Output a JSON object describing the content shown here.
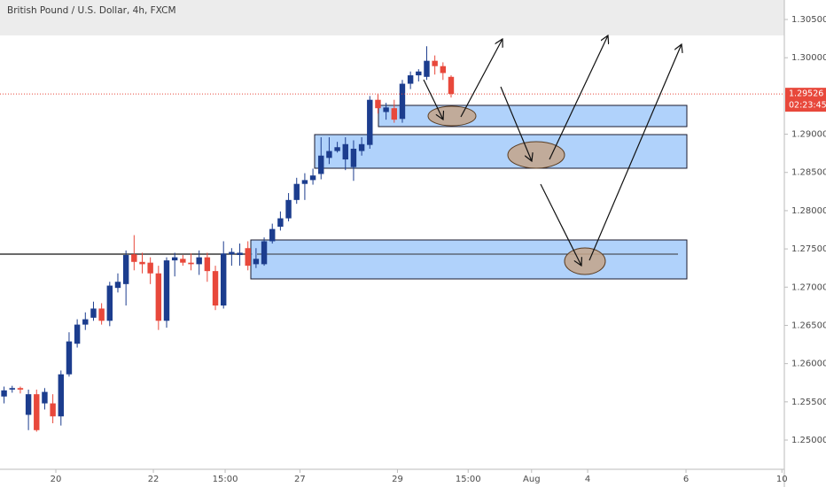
{
  "chart_data": {
    "type": "candlestick",
    "title": "British Pound / U.S. Dollar, 4h, FXCM",
    "up_color": "#1c3d8e",
    "down_color": "#e8483b",
    "series": [
      {
        "open": [
          1.2557,
          1.2566,
          1.2568,
          1.2533,
          1.256,
          1.2548,
          1.2548,
          1.2531,
          1.2586,
          1.2626,
          1.2651,
          1.266,
          1.2672,
          1.2656,
          1.2699,
          1.2704,
          1.2743,
          1.2733,
          1.2732,
          1.2718,
          1.2656,
          1.2735,
          1.2737,
          1.2732,
          1.273,
          1.2739,
          1.2721,
          1.2676,
          1.2743,
          1.2742,
          1.2751,
          1.273,
          1.273,
          1.276,
          1.2779,
          1.279,
          1.2814,
          1.2835,
          1.284,
          1.2848,
          1.2869,
          1.2878,
          1.2867,
          1.2857,
          1.2878,
          1.2886,
          1.2945,
          1.2929,
          1.2934,
          1.292,
          1.2966,
          1.2977,
          1.2975,
          1.2996,
          1.2989,
          1.2975
        ],
        "high": [
          1.257,
          1.2571,
          1.257,
          1.2566,
          1.2566,
          1.2568,
          1.256,
          1.2591,
          1.2641,
          1.2658,
          1.2667,
          1.2681,
          1.2679,
          1.2707,
          1.2718,
          1.2748,
          1.2768,
          1.2745,
          1.2739,
          1.2728,
          1.2739,
          1.2745,
          1.2742,
          1.2744,
          1.2748,
          1.2745,
          1.2728,
          1.276,
          1.2751,
          1.2757,
          1.276,
          1.2751,
          1.2765,
          1.2783,
          1.2799,
          1.2823,
          1.2843,
          1.2849,
          1.2855,
          1.2896,
          1.2896,
          1.289,
          1.2896,
          1.2892,
          1.2896,
          1.295,
          1.2953,
          1.2941,
          1.2945,
          1.2971,
          1.2982,
          1.2985,
          1.3015,
          1.3003,
          1.2994,
          1.2977
        ],
        "low": [
          1.2548,
          1.2562,
          1.2561,
          1.2513,
          1.2511,
          1.254,
          1.2522,
          1.2519,
          1.2583,
          1.2621,
          1.2644,
          1.2656,
          1.2651,
          1.2649,
          1.2693,
          1.2676,
          1.2722,
          1.2718,
          1.2704,
          1.2644,
          1.2647,
          1.2714,
          1.2728,
          1.2722,
          1.2716,
          1.2707,
          1.267,
          1.2672,
          1.2728,
          1.2728,
          1.2722,
          1.2725,
          1.2728,
          1.2757,
          1.2774,
          1.2786,
          1.2809,
          1.2814,
          1.2834,
          1.2841,
          1.2861,
          1.2876,
          1.2853,
          1.2839,
          1.2872,
          1.2881,
          1.2927,
          1.2919,
          1.2915,
          1.2915,
          1.2959,
          1.2969,
          1.2971,
          1.2978,
          1.2971,
          1.2948
        ],
        "close": [
          1.2565,
          1.2568,
          1.2566,
          1.256,
          1.2513,
          1.2563,
          1.2531,
          1.2586,
          1.2629,
          1.2651,
          1.2658,
          1.2672,
          1.2656,
          1.2702,
          1.2707,
          1.2742,
          1.2733,
          1.273,
          1.2718,
          1.2656,
          1.2735,
          1.2739,
          1.2732,
          1.273,
          1.2739,
          1.2721,
          1.2676,
          1.2744,
          1.2746,
          1.2745,
          1.2728,
          1.2737,
          1.276,
          1.2776,
          1.279,
          1.2814,
          1.2835,
          1.284,
          1.2846,
          1.2872,
          1.2878,
          1.2883,
          1.2887,
          1.2881,
          1.2887,
          1.2945,
          1.2934,
          1.2935,
          1.2919,
          1.2966,
          1.2977,
          1.2982,
          1.2996,
          1.2989,
          1.298,
          1.29526
        ]
      }
    ],
    "countdown": "02:23:45",
    "ylim": [
      1.24618,
      1.30755
    ],
    "yticks": [
      {
        "value": 1.25,
        "label": "1.25000"
      },
      {
        "value": 1.255,
        "label": "1.25500"
      },
      {
        "value": 1.26,
        "label": "1.26000"
      },
      {
        "value": 1.265,
        "label": "1.26500"
      },
      {
        "value": 1.27,
        "label": "1.27000"
      },
      {
        "value": 1.275,
        "label": "1.27500"
      },
      {
        "value": 1.28,
        "label": "1.28000"
      },
      {
        "value": 1.285,
        "label": "1.28500"
      },
      {
        "value": 1.29,
        "label": "1.29000"
      },
      {
        "value": 1.3,
        "label": "1.30000"
      },
      {
        "value": 1.305,
        "label": "1.30500"
      }
    ],
    "xlim": [
      -0.5,
      96
    ],
    "xticks": [
      {
        "value": 6.37,
        "label": "20"
      },
      {
        "value": 18.37,
        "label": "22"
      },
      {
        "value": 27.2,
        "label": "15:00"
      },
      {
        "value": 36.4,
        "label": "27"
      },
      {
        "value": 48.4,
        "label": "29"
      },
      {
        "value": 57.1,
        "label": "15:00"
      },
      {
        "value": 64.9,
        "label": "Aug"
      },
      {
        "value": 71.8,
        "label": "4"
      },
      {
        "value": 83.9,
        "label": "6"
      },
      {
        "value": 95.7,
        "label": "10"
      }
    ]
  }
}
